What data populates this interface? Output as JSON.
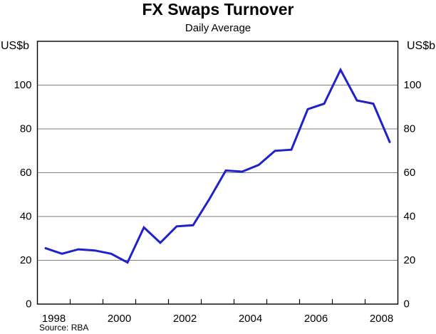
{
  "header": {
    "title": "FX Swaps Turnover",
    "subtitle": "Daily Average"
  },
  "axes": {
    "unit_left": "US$b",
    "unit_right": "US$b"
  },
  "footer": {
    "source": "Source: RBA"
  },
  "chart_data": {
    "type": "line",
    "title": "FX Swaps Turnover",
    "subtitle": "Daily Average",
    "ylabel": "US$b",
    "grid": "horizontal",
    "xlim": [
      1998,
      2009
    ],
    "ylim": [
      0,
      120
    ],
    "y_ticks": [
      0,
      20,
      40,
      60,
      80,
      100
    ],
    "x_tick_years_labeled": [
      1998,
      2000,
      2002,
      2004,
      2006,
      2008
    ],
    "x": [
      1998.25,
      1998.75,
      1999.25,
      1999.75,
      2000.25,
      2000.75,
      2001.25,
      2001.75,
      2002.25,
      2002.75,
      2003.25,
      2003.75,
      2004.25,
      2004.75,
      2005.25,
      2005.75,
      2006.25,
      2006.75,
      2007.25,
      2007.75,
      2008.25,
      2008.75
    ],
    "series": [
      {
        "name": "FX swaps daily average turnover",
        "color": "#2020cc",
        "values": [
          25.5,
          23,
          25,
          24.5,
          23,
          19,
          35,
          28,
          35.5,
          36,
          48,
          61,
          60.5,
          63.5,
          70,
          70.5,
          89,
          91.5,
          107,
          93,
          91.5,
          74
        ]
      }
    ],
    "colors": {
      "gridline": "#7f7f7f",
      "frame": "#000000",
      "text": "#000000"
    },
    "source": "Source: RBA"
  }
}
